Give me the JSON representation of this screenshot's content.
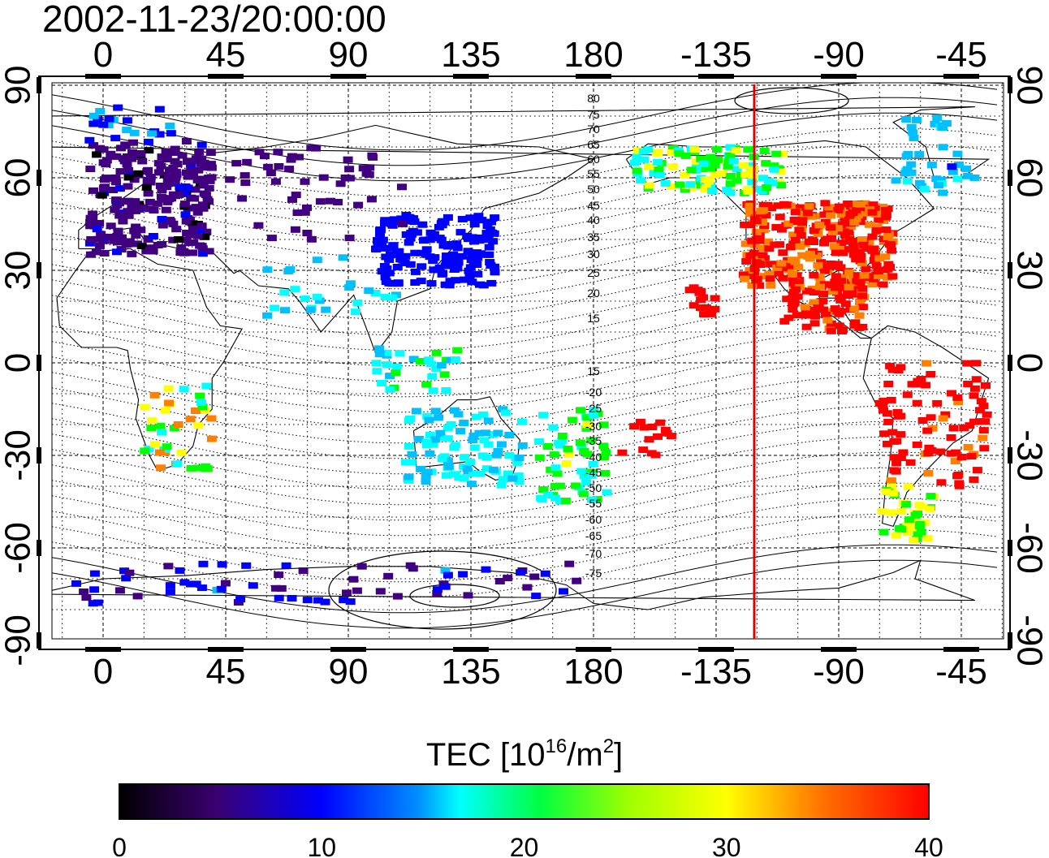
{
  "title": "2002-11-23/20:00:00",
  "map": {
    "lon_ticks_top": [
      "0",
      "45",
      "90",
      "135",
      "180",
      "-135",
      "-90",
      "-45"
    ],
    "lon_ticks_bottom": [
      "0",
      "45",
      "90",
      "135",
      "180",
      "-135",
      "-90",
      "-45"
    ],
    "lat_ticks_left": [
      "90",
      "60",
      "30",
      "0",
      "-30",
      "-60",
      "-90"
    ],
    "lat_ticks_right": [
      "90",
      "60",
      "30",
      "0",
      "-30",
      "-60",
      "-90"
    ],
    "contour_labels": [
      "80",
      "75",
      "70",
      "65",
      "60",
      "55",
      "50",
      "45",
      "40",
      "35",
      "30",
      "25",
      "20",
      "15",
      "15",
      "-20",
      "-25",
      "-30",
      "-35",
      "-40",
      "-45",
      "-50",
      "-55",
      "-60",
      "-65",
      "-70",
      "-75"
    ],
    "terminator_longitude": -121,
    "terminator_color": "#e00000"
  },
  "colorbar": {
    "title_prefix": "TEC  [10",
    "title_exp1": "16",
    "title_mid": "/m",
    "title_exp2": "2",
    "title_suffix": "]",
    "ticks": [
      "0",
      "10",
      "20",
      "30",
      "40"
    ],
    "min": 0,
    "max": 40,
    "colors": [
      "#000000",
      "#400080",
      "#0000ff",
      "#00c0ff",
      "#00ffff",
      "#00ff00",
      "#ffff00",
      "#ff8000",
      "#ff0000"
    ]
  }
}
